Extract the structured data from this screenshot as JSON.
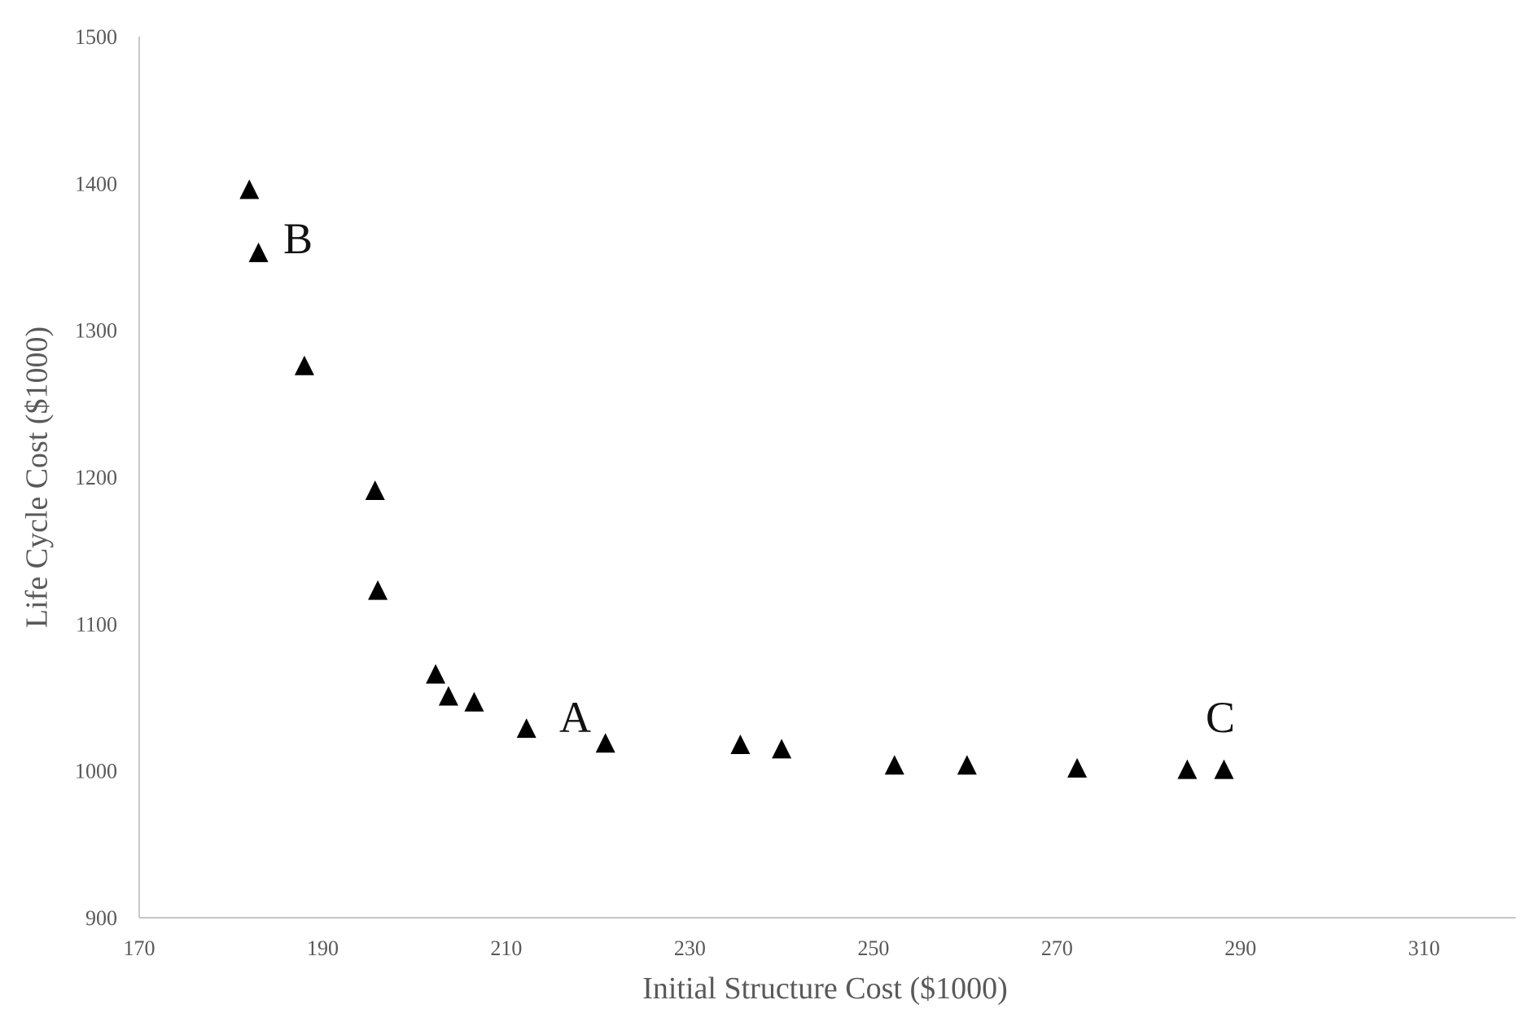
{
  "chart_data": {
    "type": "scatter",
    "title": "",
    "xlabel": "Initial Structure Cost ($1000)",
    "ylabel": "Life Cycle Cost ($1000)",
    "xlim": [
      170,
      320
    ],
    "ylim": [
      900,
      1500
    ],
    "xticks": [
      170,
      190,
      210,
      230,
      250,
      270,
      290,
      310
    ],
    "yticks": [
      900,
      1000,
      1100,
      1200,
      1300,
      1400,
      1500
    ],
    "grid": false,
    "marker": "triangle",
    "marker_color": "#000000",
    "axis_color": "#c8c8c8",
    "text_color": "#595959",
    "points": [
      {
        "x": 182,
        "y": 1395
      },
      {
        "x": 183,
        "y": 1352
      },
      {
        "x": 188,
        "y": 1275
      },
      {
        "x": 195.7,
        "y": 1190
      },
      {
        "x": 196,
        "y": 1122
      },
      {
        "x": 202.3,
        "y": 1065
      },
      {
        "x": 203.7,
        "y": 1050
      },
      {
        "x": 206.5,
        "y": 1046
      },
      {
        "x": 212.2,
        "y": 1028
      },
      {
        "x": 220.8,
        "y": 1018
      },
      {
        "x": 235.5,
        "y": 1017
      },
      {
        "x": 240,
        "y": 1014
      },
      {
        "x": 252.3,
        "y": 1003
      },
      {
        "x": 260.2,
        "y": 1003
      },
      {
        "x": 272.2,
        "y": 1001
      },
      {
        "x": 284.2,
        "y": 1000
      },
      {
        "x": 288.2,
        "y": 1000
      }
    ],
    "annotations": [
      {
        "text": "B",
        "x": 187.3,
        "y": 1363
      },
      {
        "text": "A",
        "x": 217.5,
        "y": 1037
      },
      {
        "text": "C",
        "x": 287.8,
        "y": 1037
      }
    ]
  }
}
